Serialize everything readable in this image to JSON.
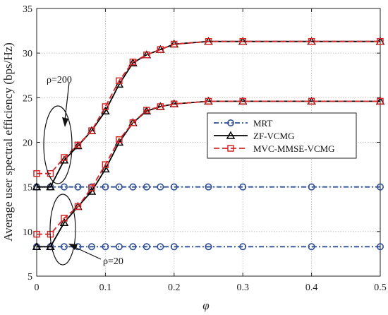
{
  "chart_data": {
    "type": "line",
    "xlabel": "φ",
    "ylabel": "Average user  spectral efficiency (bps/Hz)",
    "xlim": [
      0,
      0.5
    ],
    "ylim": [
      5,
      35
    ],
    "xticks": [
      0,
      0.1,
      0.2,
      0.3,
      0.4,
      0.5
    ],
    "xtick_labels": [
      "0",
      "0.1",
      "0.2",
      "0.3",
      "0.4",
      "0.5"
    ],
    "yticks": [
      5,
      10,
      15,
      20,
      25,
      30,
      35
    ],
    "ytick_labels": [
      "5",
      "10",
      "15",
      "20",
      "25",
      "30",
      "35"
    ],
    "grid": true,
    "legend_position": "center-right",
    "x": [
      0,
      0.02,
      0.04,
      0.06,
      0.08,
      0.1,
      0.12,
      0.14,
      0.16,
      0.18,
      0.2,
      0.25,
      0.3,
      0.4,
      0.5
    ],
    "series": [
      {
        "name": "MRT",
        "group": "ρ=200",
        "color": "#2f4f96",
        "dash": "7,3,2,3",
        "marker": "circle",
        "values": [
          15,
          15,
          15,
          15,
          15,
          15,
          15,
          15,
          15,
          15,
          15,
          15,
          15,
          15,
          15
        ]
      },
      {
        "name": "ZF-VCMG",
        "group": "ρ=200",
        "color": "#000000",
        "dash": "",
        "marker": "triangle",
        "values": [
          15,
          15,
          18,
          19.6,
          21.3,
          23.5,
          26.5,
          28.9,
          29.8,
          30.4,
          31,
          31.3,
          31.3,
          31.3,
          31.3
        ]
      },
      {
        "name": "MVC-MMSE-VCMG",
        "group": "ρ=200",
        "color": "#d62728",
        "dash": "8,4",
        "marker": "square",
        "values": [
          16.5,
          16.5,
          18.3,
          19.7,
          21.3,
          24,
          26.9,
          29,
          29.8,
          30.4,
          31,
          31.3,
          31.3,
          31.3,
          31.3
        ]
      },
      {
        "name": "MRT",
        "group": "ρ=20",
        "color": "#2f4f96",
        "dash": "7,3,2,3",
        "marker": "circle",
        "values": [
          8.3,
          8.3,
          8.3,
          8.3,
          8.3,
          8.3,
          8.3,
          8.3,
          8.3,
          8.3,
          8.3,
          8.3,
          8.3,
          8.3,
          8.3
        ]
      },
      {
        "name": "ZF-VCMG",
        "group": "ρ=20",
        "color": "#000000",
        "dash": "",
        "marker": "triangle",
        "values": [
          8.3,
          8.3,
          11,
          12.8,
          14.5,
          17,
          20,
          22.2,
          23.5,
          24,
          24.3,
          24.6,
          24.6,
          24.6,
          24.6
        ]
      },
      {
        "name": "MVC-MMSE-VCMG",
        "group": "ρ=20",
        "color": "#d62728",
        "dash": "8,4",
        "marker": "square",
        "values": [
          9.7,
          9.7,
          11.5,
          12.8,
          14.9,
          17.5,
          20.3,
          22.2,
          23.6,
          24,
          24.3,
          24.6,
          24.6,
          24.6,
          24.6
        ]
      }
    ],
    "legend": [
      {
        "label": "MRT",
        "color": "#2f4f96",
        "dash": "7,3,2,3",
        "marker": "circle"
      },
      {
        "label": "ZF-VCMG",
        "color": "#000000",
        "dash": "",
        "marker": "triangle"
      },
      {
        "label": "MVC-MMSE-VCMG",
        "color": "#d62728",
        "dash": "8,4",
        "marker": "square"
      }
    ],
    "annotations": [
      {
        "text": "ρ=200",
        "target_group": "ρ=200"
      },
      {
        "text": "ρ=20",
        "target_group": "ρ=20"
      }
    ]
  }
}
